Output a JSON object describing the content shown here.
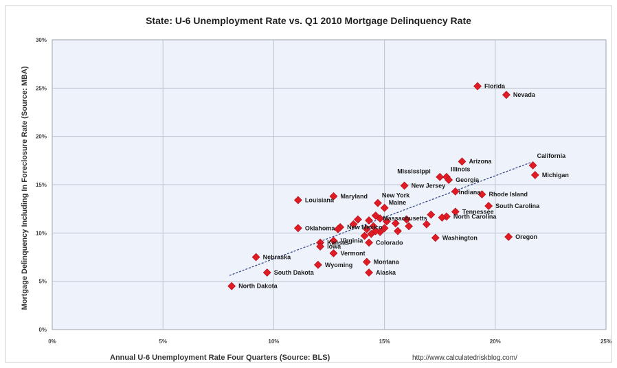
{
  "chart_data": {
    "type": "scatter",
    "title": "State: U-6 Unemployment Rate vs. Q1 2010 Mortgage Delinquency Rate",
    "xlabel": "Annual U-6 Unemployment Rate Four Quarters (Source: BLS)",
    "ylabel": "Mortgage Delinquency Including In Foreclosure Rate (Source: MBA)",
    "source": "http://www.calculatedriskblog.com/",
    "xlim": [
      0,
      25
    ],
    "ylim": [
      0,
      30
    ],
    "x_ticks": [
      "0%",
      "5%",
      "10%",
      "15%",
      "20%",
      "25%"
    ],
    "y_ticks": [
      "0%",
      "5%",
      "10%",
      "15%",
      "20%",
      "25%",
      "30%"
    ],
    "grid": true,
    "trendline": {
      "style": "dashed",
      "from": [
        8.0,
        5.6
      ],
      "to": [
        21.6,
        17.3
      ]
    },
    "colors": {
      "marker": "#e01b24",
      "plot_bg": "#eef3fb",
      "grid": "#bcc3cc",
      "trendline": "#3a4a8a"
    },
    "points": [
      {
        "label": "Florida",
        "x": 19.2,
        "y": 25.2
      },
      {
        "label": "Nevada",
        "x": 20.5,
        "y": 24.3
      },
      {
        "label": "Arizona",
        "x": 18.5,
        "y": 17.4
      },
      {
        "label": "California",
        "x": 21.7,
        "y": 17.0,
        "ldx": 6,
        "ldy": -14
      },
      {
        "label": "Michigan",
        "x": 21.8,
        "y": 16.0
      },
      {
        "label": "Illinois",
        "x": 17.8,
        "y": 15.8,
        "ldx": 6,
        "ldy": -11
      },
      {
        "label": "Mississippi",
        "x": 17.5,
        "y": 15.8,
        "ldx": -62,
        "ldy": -8
      },
      {
        "label": "Georgia",
        "x": 17.9,
        "y": 15.5
      },
      {
        "label": "New Jersey",
        "x": 15.9,
        "y": 14.9
      },
      {
        "label": "Indiana",
        "x": 18.2,
        "y": 14.3,
        "ldx": 5,
        "ldy": 1
      },
      {
        "label": "Rhode Island",
        "x": 19.4,
        "y": 14.0
      },
      {
        "label": "South Carolina",
        "x": 19.7,
        "y": 12.8
      },
      {
        "label": "Tennessee",
        "x": 18.2,
        "y": 12.2
      },
      {
        "label": "North Carolina",
        "x": 17.8,
        "y": 11.7
      },
      {
        "label": "Oregon",
        "x": 20.6,
        "y": 9.6
      },
      {
        "label": "Washington",
        "x": 17.3,
        "y": 9.5
      },
      {
        "label": "Louisiana",
        "x": 11.1,
        "y": 13.4
      },
      {
        "label": "Maryland",
        "x": 12.7,
        "y": 13.8
      },
      {
        "label": "New York",
        "x": 14.7,
        "y": 13.1,
        "ldx": 6,
        "ldy": -11
      },
      {
        "label": "Maine",
        "x": 15.0,
        "y": 12.6,
        "ldx": 6,
        "ldy": -8
      },
      {
        "label": "Massachusetts",
        "x": 14.8,
        "y": 11.5,
        "ldx": 4,
        "ldy": 0
      },
      {
        "label": "Oklahoma",
        "x": 11.1,
        "y": 10.5
      },
      {
        "label": "New Mexico",
        "x": 13.0,
        "y": 10.6
      },
      {
        "label": "Virginia",
        "x": 12.7,
        "y": 9.2
      },
      {
        "label": "Colorado",
        "x": 14.3,
        "y": 9.0
      },
      {
        "label": "Kansas",
        "x": 12.1,
        "y": 9.0
      },
      {
        "label": "Iowa",
        "x": 12.1,
        "y": 8.6
      },
      {
        "label": "Vermont",
        "x": 12.7,
        "y": 7.9
      },
      {
        "label": "Nebraska",
        "x": 9.2,
        "y": 7.5
      },
      {
        "label": "Montana",
        "x": 14.2,
        "y": 7.0
      },
      {
        "label": "Wyoming",
        "x": 12.0,
        "y": 6.7
      },
      {
        "label": "South Dakota",
        "x": 9.7,
        "y": 5.9
      },
      {
        "label": "Alaska",
        "x": 14.3,
        "y": 5.9
      },
      {
        "label": "North Dakota",
        "x": 8.1,
        "y": 4.5
      },
      {
        "label": "",
        "x": 13.8,
        "y": 11.4
      },
      {
        "label": "",
        "x": 14.3,
        "y": 11.3
      },
      {
        "label": "",
        "x": 14.6,
        "y": 11.8
      },
      {
        "label": "",
        "x": 14.5,
        "y": 10.7
      },
      {
        "label": "",
        "x": 14.2,
        "y": 10.4
      },
      {
        "label": "",
        "x": 14.8,
        "y": 10.1
      },
      {
        "label": "",
        "x": 15.0,
        "y": 10.5
      },
      {
        "label": "",
        "x": 15.1,
        "y": 11.2
      },
      {
        "label": "",
        "x": 14.6,
        "y": 10.2
      },
      {
        "label": "",
        "x": 14.4,
        "y": 9.9
      },
      {
        "label": "",
        "x": 14.1,
        "y": 9.7
      },
      {
        "label": "",
        "x": 15.5,
        "y": 11.0
      },
      {
        "label": "",
        "x": 16.0,
        "y": 11.4
      },
      {
        "label": "",
        "x": 16.1,
        "y": 10.7
      },
      {
        "label": "",
        "x": 16.9,
        "y": 10.9
      },
      {
        "label": "",
        "x": 17.1,
        "y": 11.9
      },
      {
        "label": "",
        "x": 17.6,
        "y": 11.6
      },
      {
        "label": "",
        "x": 12.9,
        "y": 10.4
      },
      {
        "label": "",
        "x": 13.6,
        "y": 10.9
      },
      {
        "label": "",
        "x": 15.6,
        "y": 10.2
      }
    ]
  }
}
